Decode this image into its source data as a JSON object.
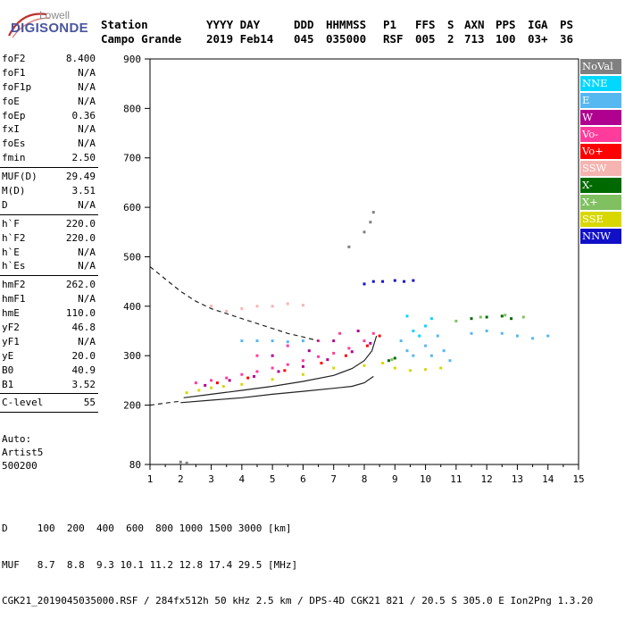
{
  "logo": {
    "line1": "Lowell",
    "line2": "DIGISONDE"
  },
  "header": {
    "labels": [
      {
        "key": "station_label",
        "text": "Station"
      },
      {
        "key": "yyyy_label",
        "text": "YYYY DAY"
      },
      {
        "key": "ddd_label",
        "text": "DDD"
      },
      {
        "key": "hhmmss_label",
        "text": "HHMMSS"
      },
      {
        "key": "p1_label",
        "text": "P1"
      },
      {
        "key": "ffs_label",
        "text": "FFS"
      },
      {
        "key": "s_label",
        "text": "S"
      },
      {
        "key": "axn_label",
        "text": "AXN"
      },
      {
        "key": "pps_label",
        "text": "PPS"
      },
      {
        "key": "iga_label",
        "text": "IGA"
      },
      {
        "key": "ps_label",
        "text": "PS"
      }
    ],
    "values": [
      {
        "key": "station",
        "text": "Campo Grande"
      },
      {
        "key": "year_day",
        "text": "2019 Feb14"
      },
      {
        "key": "ddd",
        "text": "045"
      },
      {
        "key": "hhmmss",
        "text": "035000"
      },
      {
        "key": "p1",
        "text": "RSF"
      },
      {
        "key": "ffs",
        "text": "005"
      },
      {
        "key": "s",
        "text": "2"
      },
      {
        "key": "axn",
        "text": "713"
      },
      {
        "key": "pps",
        "text": "100"
      },
      {
        "key": "iga",
        "text": "03+"
      },
      {
        "key": "ps",
        "text": "36"
      }
    ]
  },
  "params": {
    "group1": [
      {
        "label": "foF2",
        "value": "8.400"
      },
      {
        "label": "foF1",
        "value": "N/A"
      },
      {
        "label": "foF1p",
        "value": "N/A"
      },
      {
        "label": "foE",
        "value": "N/A"
      },
      {
        "label": "foEp",
        "value": "0.36"
      },
      {
        "label": "fxI",
        "value": "N/A"
      },
      {
        "label": "foEs",
        "value": "N/A"
      },
      {
        "label": "fmin",
        "value": "2.50"
      }
    ],
    "group2": [
      {
        "label": "MUF(D)",
        "value": "29.49"
      },
      {
        "label": "M(D)",
        "value": "3.51"
      },
      {
        "label": "D",
        "value": "N/A"
      }
    ],
    "group3": [
      {
        "label": "h`F",
        "value": "220.0"
      },
      {
        "label": "h`F2",
        "value": "220.0"
      },
      {
        "label": "h`E",
        "value": "N/A"
      },
      {
        "label": "h`Es",
        "value": "N/A"
      }
    ],
    "group4": [
      {
        "label": "hmF2",
        "value": "262.0"
      },
      {
        "label": "hmF1",
        "value": "N/A"
      },
      {
        "label": "hmE",
        "value": "110.0"
      },
      {
        "label": "yF2",
        "value": "46.8"
      },
      {
        "label": "yF1",
        "value": "N/A"
      },
      {
        "label": "yE",
        "value": "20.0"
      },
      {
        "label": "B0",
        "value": "40.9"
      },
      {
        "label": "B1",
        "value": "3.52"
      }
    ],
    "group5": [
      {
        "label": "C-level",
        "value": "55"
      }
    ]
  },
  "autoscale": {
    "line1": "Auto:",
    "line2": "Artist5",
    "line3": "500200"
  },
  "legend": [
    {
      "label": "NoVal",
      "color": "#808080"
    },
    {
      "label": "NNE",
      "color": "#00d8ff"
    },
    {
      "label": "E",
      "color": "#55b8f0"
    },
    {
      "label": "W",
      "color": "#b0008f"
    },
    {
      "label": "Vo-",
      "color": "#ff3c9c"
    },
    {
      "label": "Vo+",
      "color": "#ff0000"
    },
    {
      "label": "SSW",
      "color": "#f5b4b0"
    },
    {
      "label": "X-",
      "color": "#006a00"
    },
    {
      "label": "X+",
      "color": "#80c060"
    },
    {
      "label": "SSE",
      "color": "#d8d800"
    },
    {
      "label": "NNW",
      "color": "#1010c8"
    }
  ],
  "footer": {
    "line1": "D     100  200  400  600  800 1000 1500 3000 [km]",
    "line2": "MUF   8.7  8.8  9.3 10.1 11.2 12.8 17.4 29.5 [MHz]",
    "line3": "CGK21_2019045035000.RSF / 284fx512h 50 kHz 2.5 km / DPS-4D CGK21 821 / 20.5 S 305.0 E Ion2Png 1.3.20"
  },
  "chart_data": {
    "type": "scatter",
    "title": "",
    "xlabel": "",
    "ylabel": "",
    "xlim": [
      1,
      15
    ],
    "ylim": [
      80,
      900
    ],
    "x_ticks": [
      1,
      2,
      3,
      4,
      5,
      6,
      7,
      8,
      9,
      10,
      11,
      12,
      13,
      14,
      15
    ],
    "y_ticks": [
      80,
      200,
      300,
      400,
      500,
      600,
      700,
      800,
      900
    ],
    "grid": false,
    "legend_position": "right",
    "series": [
      {
        "name": "Vo-",
        "color": "#ff3c9c",
        "points": [
          [
            2.5,
            245
          ],
          [
            3.0,
            250
          ],
          [
            3.5,
            255
          ],
          [
            4.0,
            262
          ],
          [
            4.5,
            268
          ],
          [
            5.0,
            275
          ],
          [
            5.5,
            282
          ],
          [
            6.0,
            290
          ],
          [
            6.5,
            298
          ],
          [
            7.0,
            305
          ],
          [
            7.5,
            315
          ],
          [
            8.0,
            330
          ],
          [
            8.3,
            345
          ],
          [
            4.5,
            300
          ],
          [
            5.5,
            320
          ],
          [
            6.5,
            330
          ],
          [
            7.2,
            345
          ]
        ]
      },
      {
        "name": "W",
        "color": "#b0008f",
        "points": [
          [
            2.8,
            240
          ],
          [
            3.6,
            250
          ],
          [
            4.4,
            258
          ],
          [
            5.2,
            268
          ],
          [
            6.0,
            278
          ],
          [
            6.8,
            292
          ],
          [
            7.6,
            308
          ],
          [
            8.2,
            325
          ],
          [
            5.0,
            300
          ],
          [
            6.2,
            310
          ],
          [
            7.0,
            330
          ],
          [
            7.8,
            350
          ]
        ]
      },
      {
        "name": "Vo+",
        "color": "#ff0000",
        "points": [
          [
            3.2,
            245
          ],
          [
            4.2,
            255
          ],
          [
            5.4,
            270
          ],
          [
            6.6,
            285
          ],
          [
            7.4,
            300
          ],
          [
            8.1,
            320
          ],
          [
            8.5,
            340
          ]
        ]
      },
      {
        "name": "SSE",
        "color": "#d8d800",
        "points": [
          [
            2.2,
            225
          ],
          [
            2.6,
            230
          ],
          [
            3.0,
            235
          ],
          [
            3.4,
            238
          ],
          [
            4.0,
            242
          ],
          [
            5.0,
            252
          ],
          [
            6.0,
            262
          ],
          [
            7.0,
            275
          ],
          [
            8.0,
            280
          ],
          [
            8.6,
            285
          ],
          [
            9.0,
            275
          ],
          [
            9.5,
            270
          ],
          [
            10.0,
            272
          ],
          [
            10.5,
            275
          ]
        ]
      },
      {
        "name": "E",
        "color": "#55b8f0",
        "points": [
          [
            9.2,
            330
          ],
          [
            9.4,
            310
          ],
          [
            9.6,
            300
          ],
          [
            10.0,
            320
          ],
          [
            10.2,
            300
          ],
          [
            10.4,
            340
          ],
          [
            10.6,
            310
          ],
          [
            10.8,
            290
          ],
          [
            11.5,
            345
          ],
          [
            12.0,
            350
          ],
          [
            12.5,
            345
          ],
          [
            13.0,
            340
          ],
          [
            13.5,
            335
          ],
          [
            14.0,
            340
          ],
          [
            4.0,
            330
          ],
          [
            4.5,
            330
          ],
          [
            5.0,
            330
          ],
          [
            5.5,
            328
          ],
          [
            6.0,
            330
          ]
        ]
      },
      {
        "name": "NNE",
        "color": "#00d8ff",
        "points": [
          [
            9.4,
            380
          ],
          [
            9.6,
            350
          ],
          [
            10.0,
            360
          ],
          [
            10.2,
            375
          ],
          [
            9.8,
            340
          ]
        ]
      },
      {
        "name": "SSW",
        "color": "#f5b4b0",
        "points": [
          [
            3.5,
            390
          ],
          [
            4.0,
            395
          ],
          [
            4.5,
            400
          ],
          [
            5.0,
            400
          ],
          [
            5.5,
            405
          ],
          [
            6.0,
            402
          ],
          [
            3.0,
            400
          ]
        ]
      },
      {
        "name": "X-",
        "color": "#006a00",
        "points": [
          [
            11.5,
            375
          ],
          [
            12.0,
            378
          ],
          [
            12.5,
            380
          ],
          [
            12.8,
            375
          ],
          [
            8.8,
            290
          ],
          [
            9.0,
            295
          ]
        ]
      },
      {
        "name": "X+",
        "color": "#80c060",
        "points": [
          [
            11.0,
            370
          ],
          [
            11.8,
            378
          ],
          [
            12.6,
            382
          ],
          [
            13.2,
            378
          ],
          [
            8.9,
            292
          ]
        ]
      },
      {
        "name": "NNW",
        "color": "#1010c8",
        "points": [
          [
            8.0,
            445
          ],
          [
            8.3,
            450
          ],
          [
            8.6,
            450
          ],
          [
            9.0,
            452
          ],
          [
            9.3,
            450
          ],
          [
            9.6,
            452
          ]
        ]
      },
      {
        "name": "NoVal",
        "color": "#808080",
        "points": [
          [
            2.0,
            85
          ],
          [
            2.2,
            83
          ],
          [
            7.5,
            520
          ],
          [
            8.0,
            550
          ],
          [
            8.2,
            570
          ],
          [
            8.3,
            590
          ]
        ]
      }
    ],
    "trace_curves": [
      {
        "style": "solid",
        "points": [
          [
            2.0,
            205
          ],
          [
            3.0,
            210
          ],
          [
            4.0,
            215
          ],
          [
            5.0,
            222
          ],
          [
            6.0,
            228
          ],
          [
            7.0,
            234
          ],
          [
            7.6,
            238
          ],
          [
            8.0,
            245
          ],
          [
            8.3,
            258
          ]
        ]
      },
      {
        "style": "solid",
        "points": [
          [
            2.1,
            215
          ],
          [
            3.0,
            222
          ],
          [
            4.0,
            230
          ],
          [
            5.0,
            238
          ],
          [
            6.0,
            248
          ],
          [
            7.0,
            260
          ],
          [
            7.6,
            274
          ],
          [
            8.0,
            290
          ],
          [
            8.25,
            310
          ],
          [
            8.4,
            340
          ]
        ]
      },
      {
        "style": "dashed",
        "points": [
          [
            1.0,
            200
          ],
          [
            1.5,
            204
          ],
          [
            2.0,
            208
          ]
        ]
      },
      {
        "style": "dashed",
        "points": [
          [
            1.0,
            480
          ],
          [
            1.5,
            455
          ],
          [
            2.0,
            430
          ],
          [
            2.5,
            410
          ],
          [
            3.0,
            395
          ],
          [
            3.5,
            385
          ],
          [
            4.0,
            375
          ],
          [
            4.5,
            365
          ],
          [
            5.0,
            355
          ],
          [
            5.5,
            345
          ],
          [
            6.0,
            338
          ],
          [
            6.5,
            330
          ]
        ]
      }
    ]
  }
}
